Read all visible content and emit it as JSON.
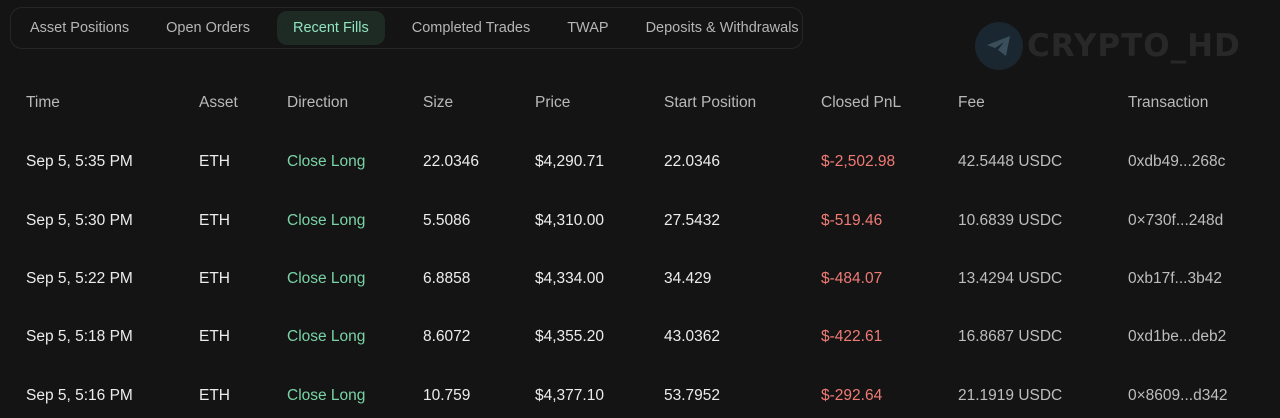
{
  "tabs": [
    {
      "label": "Asset Positions",
      "active": false
    },
    {
      "label": "Open Orders",
      "active": false
    },
    {
      "label": "Recent Fills",
      "active": true
    },
    {
      "label": "Completed Trades",
      "active": false
    },
    {
      "label": "TWAP",
      "active": false
    },
    {
      "label": "Deposits & Withdrawals",
      "active": false
    }
  ],
  "watermark": {
    "text": "CRYPTO_HD",
    "icon": "telegram-icon"
  },
  "colors": {
    "background": "#141414",
    "accent_green": "#79d3a6",
    "pnl_red": "#f07b75",
    "active_tab_bg": "#1e2b25"
  },
  "table": {
    "headers": [
      "Time",
      "Asset",
      "Direction",
      "Size",
      "Price",
      "Start Position",
      "Closed PnL",
      "Fee",
      "Transaction"
    ],
    "rows": [
      {
        "time": "Sep 5, 5:35 PM",
        "asset": "ETH",
        "direction": "Close Long",
        "size": "22.0346",
        "price": "$4,290.71",
        "start_position": "22.0346",
        "closed_pnl": "$-2,502.98",
        "fee": "42.5448 USDC",
        "transaction": "0xdb49...268c"
      },
      {
        "time": "Sep 5, 5:30 PM",
        "asset": "ETH",
        "direction": "Close Long",
        "size": "5.5086",
        "price": "$4,310.00",
        "start_position": "27.5432",
        "closed_pnl": "$-519.46",
        "fee": "10.6839 USDC",
        "transaction": "0×730f...248d"
      },
      {
        "time": "Sep 5, 5:22 PM",
        "asset": "ETH",
        "direction": "Close Long",
        "size": "6.8858",
        "price": "$4,334.00",
        "start_position": "34.429",
        "closed_pnl": "$-484.07",
        "fee": "13.4294 USDC",
        "transaction": "0xb17f...3b42"
      },
      {
        "time": "Sep 5, 5:18 PM",
        "asset": "ETH",
        "direction": "Close Long",
        "size": "8.6072",
        "price": "$4,355.20",
        "start_position": "43.0362",
        "closed_pnl": "$-422.61",
        "fee": "16.8687 USDC",
        "transaction": "0xd1be...deb2"
      },
      {
        "time": "Sep 5, 5:16 PM",
        "asset": "ETH",
        "direction": "Close Long",
        "size": "10.759",
        "price": "$4,377.10",
        "start_position": "53.7952",
        "closed_pnl": "$-292.64",
        "fee": "21.1919 USDC",
        "transaction": "0×8609...d342"
      }
    ]
  }
}
